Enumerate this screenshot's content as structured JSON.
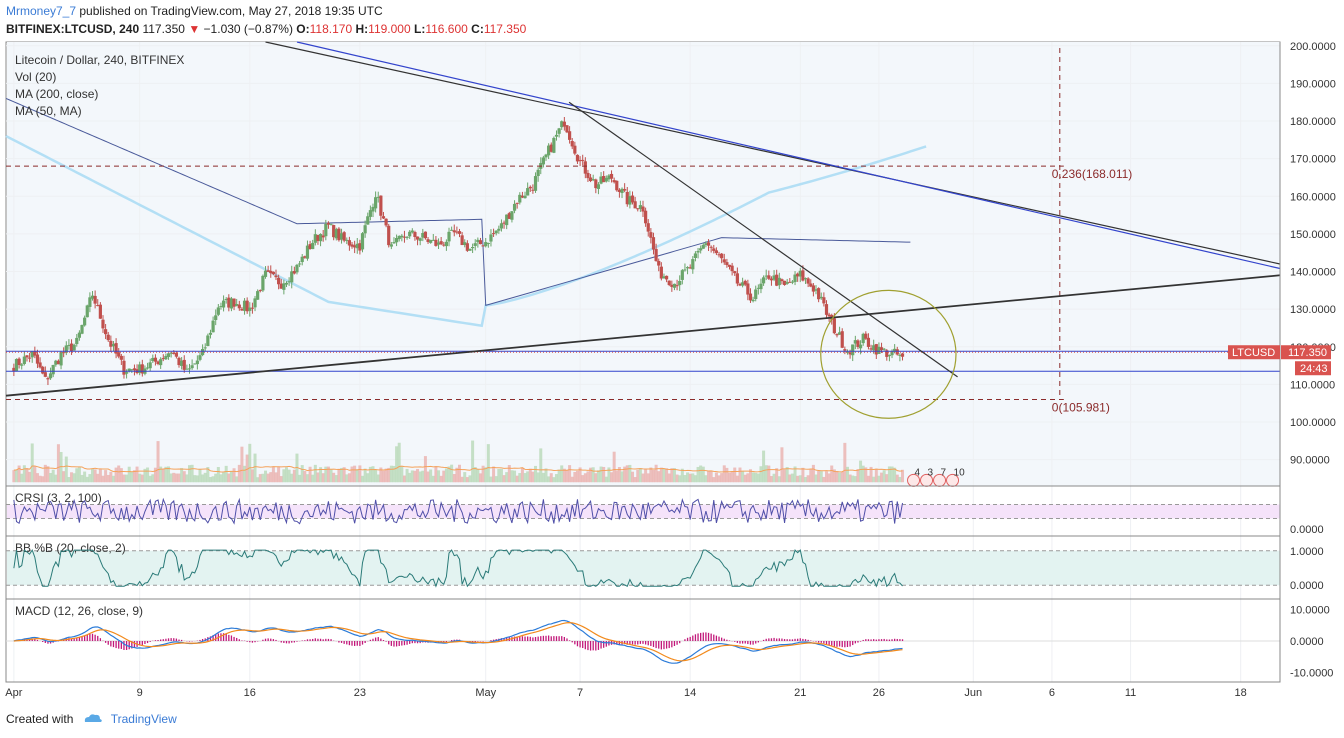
{
  "header": {
    "author": "Mrmoney7_7",
    "published": "published on TradingView.com, May 27, 2018 19:35 UTC",
    "symbol": "BITFINEX:LTCUSD, 240",
    "last": "117.350",
    "change_arrow": "▼",
    "change": "−1.030 (−0.87%)",
    "o_label": "O:",
    "o_val": "118.170",
    "h_label": "H:",
    "h_val": "119.000",
    "l_label": "L:",
    "l_val": "116.600",
    "c_label": "C:",
    "c_val": "117.350"
  },
  "legend": {
    "title": "Litecoin / Dollar, 240, BITFINEX",
    "vol": "Vol (20)",
    "ma200": "MA (200, close)",
    "ma50": "MA (50, MA)"
  },
  "footer": {
    "created_with": "Created with",
    "brand": "TradingView"
  },
  "colors": {
    "up": "#6aa56a",
    "down": "#c0504d",
    "ma200": "#b3dff5",
    "ma50": "#4a5a9a",
    "trend_blue": "#3344cc",
    "trend_black": "#333333",
    "fib": "#8b2b2b",
    "rsi": "#4f4fa8",
    "bbpb": "#2a7a78",
    "macd": "#2b7bd8",
    "signal": "#f28a1c",
    "hist": "#c2187a",
    "ellipse": "#a0a030",
    "price_tag": "#d9534f"
  },
  "chart_data": [
    {
      "type": "candlestick",
      "title": "Litecoin / Dollar, 240, BITFINEX",
      "x_labels": [
        "Apr",
        "9",
        "16",
        "23",
        "May",
        "7",
        "14",
        "21",
        "26",
        "Jun",
        "6",
        "11",
        "18"
      ],
      "x_label_dates": [
        0,
        8,
        15,
        22,
        30,
        36,
        43,
        50,
        55,
        61,
        66,
        71,
        78
      ],
      "date_range": [
        -0.5,
        80.5
      ],
      "ylim": [
        83,
        201
      ],
      "y_ticks": [
        90,
        100,
        110,
        120,
        130,
        140,
        150,
        160,
        170,
        180,
        190,
        200
      ],
      "y_tick_labels": [
        "90.0000",
        "100.0000",
        "110.0000",
        "120.0000",
        "130.0000",
        "140.0000",
        "150.0000",
        "160.0000",
        "170.0000",
        "180.0000",
        "190.0000",
        "200.0000"
      ],
      "candles_per_day": 6,
      "last_date": 56.5,
      "close_anchors": [
        [
          0,
          115
        ],
        [
          1.2,
          118
        ],
        [
          2,
          111
        ],
        [
          3,
          118
        ],
        [
          4,
          121
        ],
        [
          5,
          134
        ],
        [
          6,
          122
        ],
        [
          7,
          114
        ],
        [
          8,
          114
        ],
        [
          9,
          116
        ],
        [
          10,
          119
        ],
        [
          11,
          113
        ],
        [
          12,
          118
        ],
        [
          13,
          131
        ],
        [
          14,
          132
        ],
        [
          15,
          130
        ],
        [
          16,
          139
        ],
        [
          17,
          137
        ],
        [
          18,
          141
        ],
        [
          19,
          148
        ],
        [
          20,
          152
        ],
        [
          21,
          148
        ],
        [
          22,
          147
        ],
        [
          23,
          161
        ],
        [
          24,
          146
        ],
        [
          25,
          150
        ],
        [
          26,
          149
        ],
        [
          27,
          147
        ],
        [
          28,
          150
        ],
        [
          29,
          146
        ],
        [
          30,
          148
        ],
        [
          31,
          152
        ],
        [
          32,
          159
        ],
        [
          33,
          163
        ],
        [
          34,
          172
        ],
        [
          35,
          180
        ],
        [
          36,
          169
        ],
        [
          37,
          163
        ],
        [
          38,
          165
        ],
        [
          39,
          159
        ],
        [
          40,
          157
        ],
        [
          41,
          140
        ],
        [
          42,
          137
        ],
        [
          43,
          141
        ],
        [
          44,
          148
        ],
        [
          45,
          143
        ],
        [
          46,
          137
        ],
        [
          47,
          133
        ],
        [
          48,
          139
        ],
        [
          49,
          136
        ],
        [
          50,
          139
        ],
        [
          51,
          135
        ],
        [
          52,
          126
        ],
        [
          53,
          119
        ],
        [
          54,
          122
        ],
        [
          55,
          119
        ],
        [
          56,
          118
        ],
        [
          56.5,
          117.35
        ]
      ],
      "last_price": "117.350",
      "last_price_label": "LTCUSD",
      "countdown": "24:43",
      "fib_levels": [
        {
          "label": "0.236(168.011)",
          "value": 168.011
        },
        {
          "label": "0(105.981)",
          "value": 105.981
        }
      ],
      "horizontal_lines": [
        118.8,
        113.5
      ],
      "trendlines": [
        {
          "name": "upper-black",
          "from": [
            16,
            201
          ],
          "to": [
            80.5,
            142
          ]
        },
        {
          "name": "upper-blue",
          "from": [
            18,
            201
          ],
          "to": [
            80.5,
            140.8
          ]
        },
        {
          "name": "peak-to-apex",
          "from": [
            35.3,
            185
          ],
          "to": [
            60,
            112
          ]
        },
        {
          "name": "rising-support",
          "from": [
            -0.5,
            107
          ],
          "to": [
            80.5,
            139
          ]
        }
      ],
      "fib_vertical_date": 66.5,
      "ellipse": {
        "cx": 55.6,
        "cy": 118,
        "rx": 4.3,
        "ry": 17
      },
      "event_markers": [
        "4",
        "3",
        "7",
        "10"
      ]
    },
    {
      "type": "line",
      "name": "CRSI (3, 2, 100)",
      "ylim": [
        -20,
        120
      ],
      "band": [
        30,
        70
      ],
      "y_ticks": [
        0
      ],
      "y_tick_labels": [
        "0.0000"
      ]
    },
    {
      "type": "line",
      "name": "BB %B (20, close, 2)",
      "ylim": [
        -0.4,
        1.4
      ],
      "band": [
        0,
        1
      ],
      "y_ticks": [
        0,
        1
      ],
      "y_tick_labels": [
        "0.0000",
        "1.0000"
      ]
    },
    {
      "type": "line",
      "name": "MACD (12, 26, close, 9)",
      "ylim": [
        -13,
        13
      ],
      "y_ticks": [
        -10,
        0,
        10
      ],
      "y_tick_labels": [
        "-10.0000",
        "0.0000",
        "10.0000"
      ],
      "series": [
        "MACD",
        "Signal",
        "Histogram"
      ]
    }
  ]
}
